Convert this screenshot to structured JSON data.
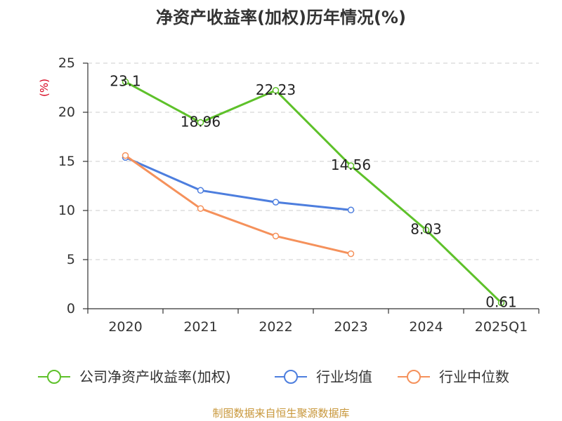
{
  "chart_data": {
    "type": "line",
    "title": "净资产收益率(加权)历年情况(%)",
    "xlabel": "",
    "ylabel": "(%)",
    "categories": [
      "2020",
      "2021",
      "2022",
      "2023",
      "2024",
      "2025Q1"
    ],
    "ylim": [
      0,
      25
    ],
    "yticks": [
      0,
      5,
      10,
      15,
      20,
      25
    ],
    "grid": true,
    "legend_position": "bottom",
    "series": [
      {
        "name": "公司净资产收益率(加权)",
        "color": "#5ec12a",
        "values": [
          23.1,
          18.96,
          22.23,
          14.56,
          8.03,
          0.61
        ],
        "show_data_labels": true
      },
      {
        "name": "行业均值",
        "color": "#4d7ede",
        "values": [
          15.4,
          12.05,
          10.85,
          10.05,
          null,
          null
        ],
        "show_data_labels": false
      },
      {
        "name": "行业中位数",
        "color": "#f5915b",
        "values": [
          15.6,
          10.2,
          7.4,
          5.6,
          null,
          null
        ],
        "show_data_labels": false
      }
    ]
  },
  "source_note": "制图数据来自恒生聚源数据库",
  "colors": {
    "title": "#333333",
    "ylabel": "#d7001a",
    "source_note": "#c8973a"
  }
}
